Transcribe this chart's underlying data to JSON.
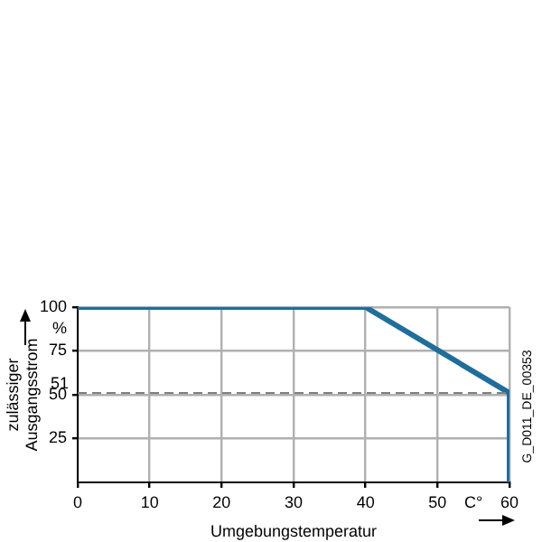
{
  "chart_data": {
    "type": "line",
    "xlabel": "Umgebungstemperatur",
    "ylabel": "zulässiger Ausgangsstrom",
    "x": [
      0,
      40,
      60,
      60
    ],
    "series": [
      {
        "color": "#1f6e9c",
        "values": [
          100,
          100,
          51,
          0
        ]
      }
    ],
    "xlim": [
      0,
      60
    ],
    "xticks": [
      0,
      10,
      20,
      30,
      40,
      50,
      {
        "value": 55,
        "label": "C°"
      },
      60
    ],
    "ylim": [
      0,
      100
    ],
    "yticks": [
      25,
      50,
      75,
      {
        "value": 87.5,
        "label": "%"
      },
      100
    ],
    "ref_lines": [
      {
        "axis": "y",
        "value": 51,
        "label": "51",
        "color": "#808080",
        "line_style": "dashed"
      }
    ],
    "annotations": [
      "G_D011_DE_00353"
    ],
    "grid": true,
    "marker": "none",
    "line_style": "solid",
    "legend": false
  }
}
